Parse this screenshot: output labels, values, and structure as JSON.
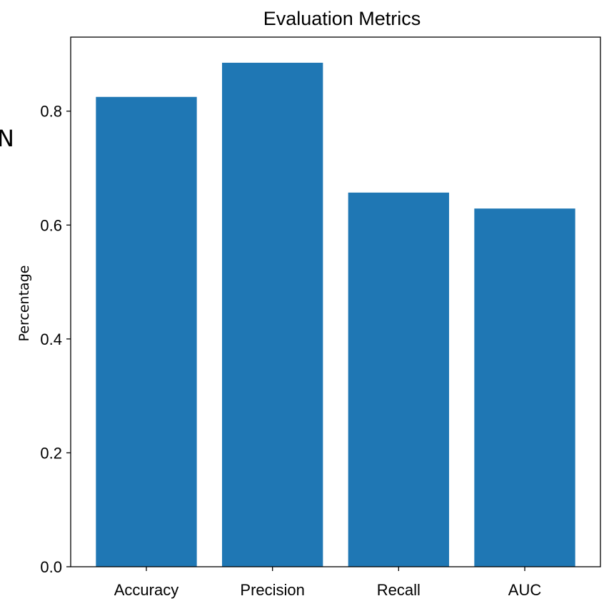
{
  "cut_off_glyph": "N",
  "chart_data": {
    "type": "bar",
    "title": "Evaluation Metrics",
    "xlabel": "",
    "ylabel": "Percentage",
    "categories": [
      "Accuracy",
      "Precision",
      "Recall",
      "AUC"
    ],
    "values": [
      0.825,
      0.885,
      0.657,
      0.629
    ],
    "ylim": [
      0,
      0.93
    ],
    "yticks": [
      0.0,
      0.2,
      0.4,
      0.6,
      0.8
    ],
    "ytick_labels": [
      "0.0",
      "0.2",
      "0.4",
      "0.6",
      "0.8"
    ],
    "bar_color": "#1f77b4",
    "grid": false,
    "legend": "none"
  }
}
